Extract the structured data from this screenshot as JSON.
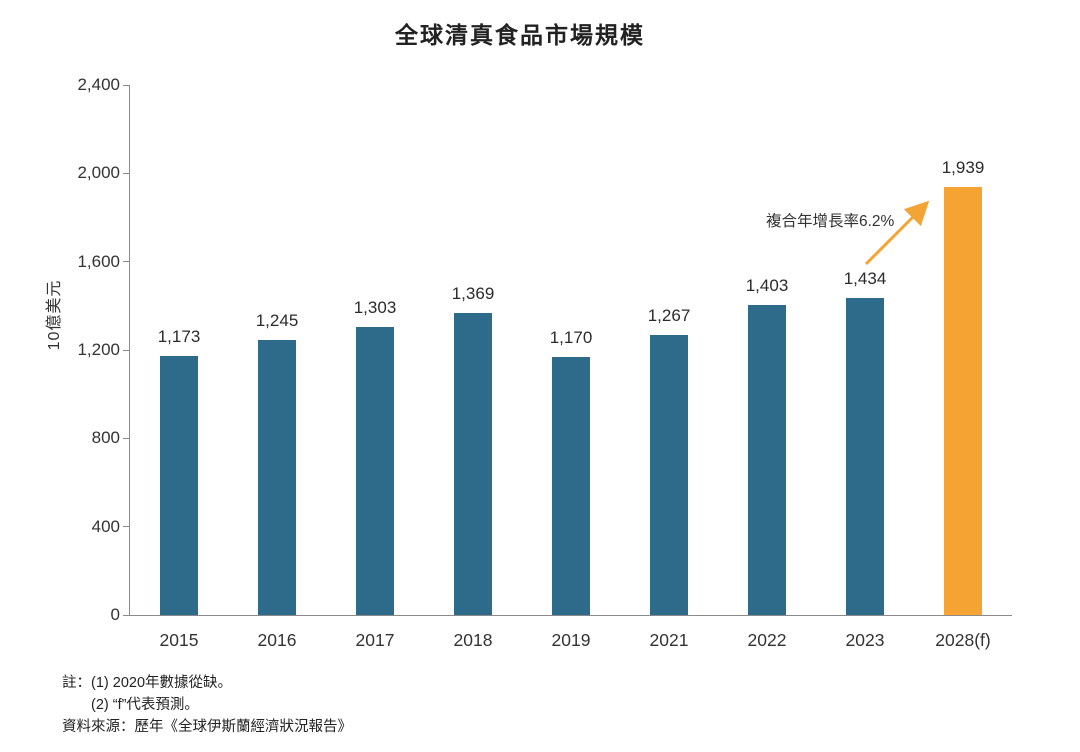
{
  "title": "全球清真食品市場規模",
  "chart_data": {
    "type": "bar",
    "title": "全球清真食品市場規模",
    "xlabel": "",
    "ylabel": "10億美元",
    "categories": [
      "2015",
      "2016",
      "2017",
      "2018",
      "2019",
      "2021",
      "2022",
      "2023",
      "2028(f)"
    ],
    "values": [
      1173,
      1245,
      1303,
      1369,
      1170,
      1267,
      1403,
      1434,
      1939
    ],
    "value_labels": [
      "1,173",
      "1,245",
      "1,303",
      "1,369",
      "1,170",
      "1,267",
      "1,403",
      "1,434",
      "1,939"
    ],
    "ylim": [
      0,
      2400
    ],
    "ytick_values": [
      0,
      400,
      800,
      1200,
      1600,
      2000,
      2400
    ],
    "ytick_labels": [
      "0",
      "400",
      "800",
      "1,200",
      "1,600",
      "2,000",
      "2,400"
    ],
    "bar_color": "#2e6b8a",
    "forecast_bar_color": "#f5a433",
    "forecast_index": 8,
    "annotation": "複合年增長率6.2%",
    "annotation_arrow_color": "#f2a434",
    "axis_color": "#8a8a8a",
    "grid": false,
    "legend_position": "none"
  },
  "notes": {
    "line1": "註：(1) 2020年數據從缺。",
    "line2": "(2) “f”代表預測。",
    "line3": "資料來源：歷年《全球伊斯蘭經濟狀況報告》"
  }
}
